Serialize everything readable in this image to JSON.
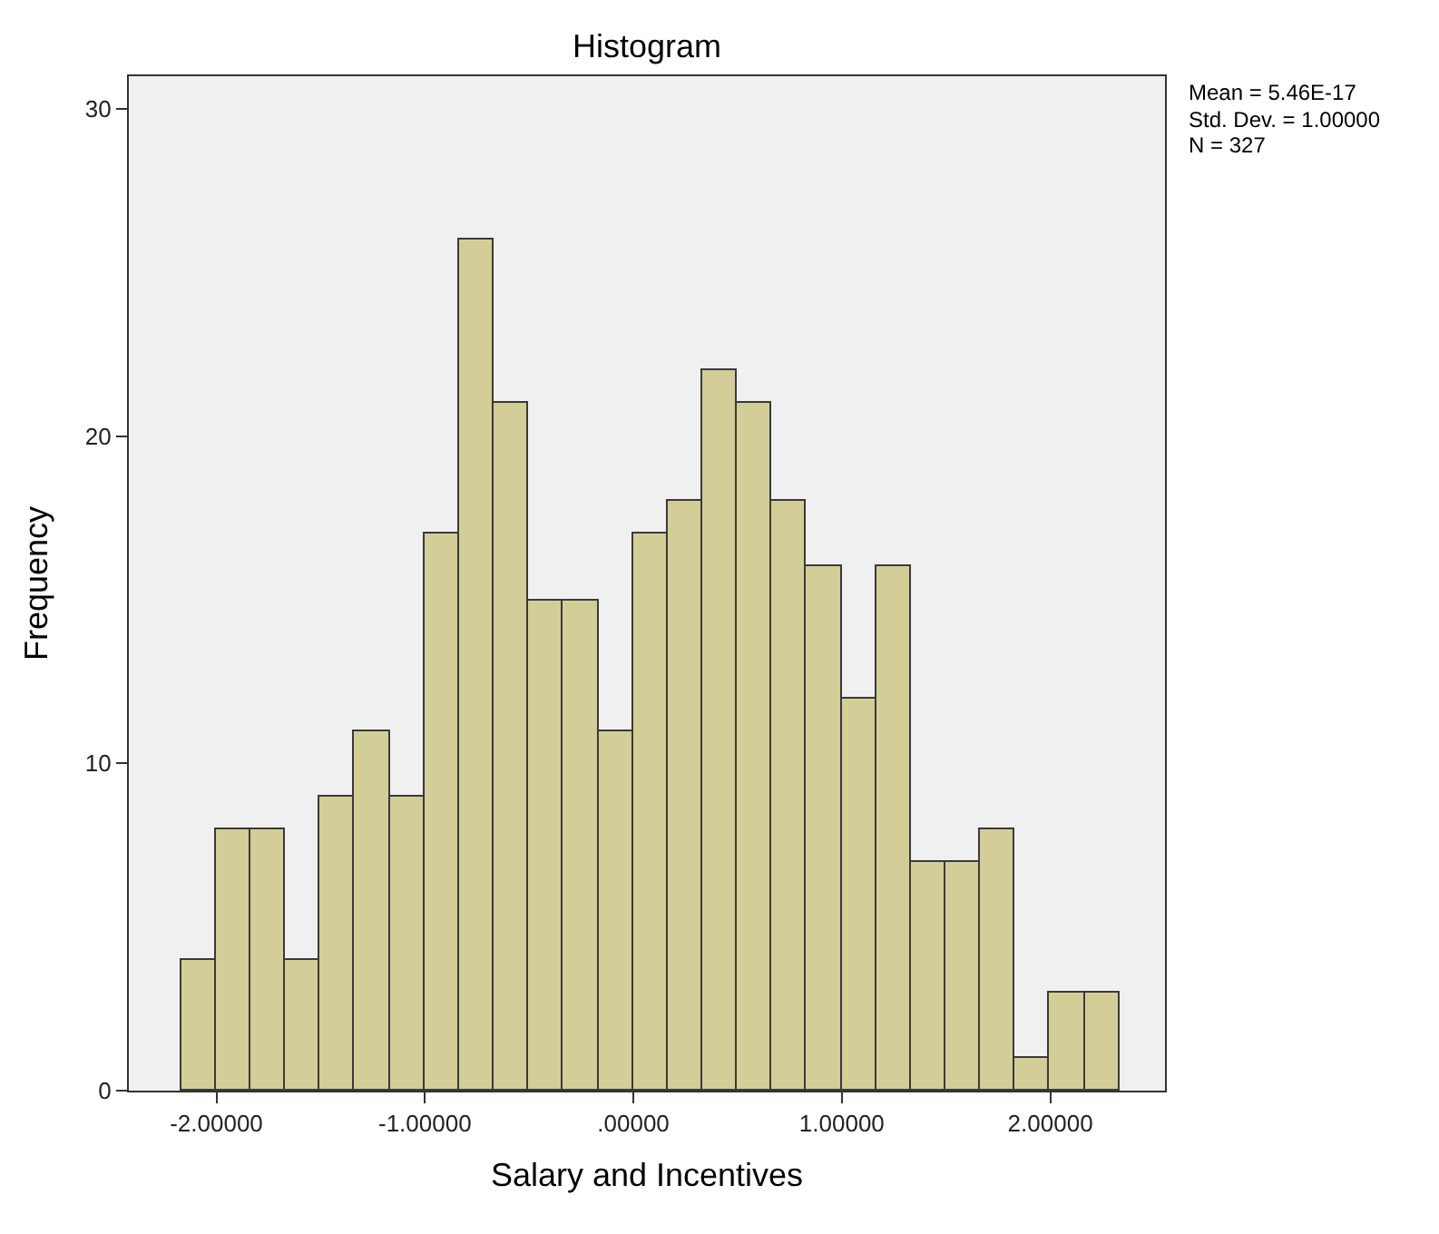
{
  "chart_data": {
    "type": "histogram",
    "title": "Histogram",
    "xlabel": "Salary and Incentives",
    "ylabel": "Frequency",
    "bins": [
      -2.17,
      -2.003,
      -1.837,
      -1.67,
      -1.503,
      -1.337,
      -1.17,
      -1.003,
      -0.837,
      -0.67,
      -0.503,
      -0.337,
      -0.17,
      -0.003,
      0.163,
      0.33,
      0.497,
      0.663,
      0.83,
      0.997,
      1.163,
      1.33,
      1.497,
      1.663,
      1.83,
      1.997,
      2.163,
      2.33
    ],
    "values": [
      4,
      8,
      8,
      4,
      9,
      11,
      9,
      17,
      26,
      21,
      15,
      15,
      11,
      17,
      18,
      22,
      21,
      18,
      16,
      12,
      16,
      7,
      7,
      8,
      1,
      3,
      3
    ],
    "color": "#d3ce97",
    "xlim": [
      -2.42,
      2.55
    ],
    "ylim": [
      0,
      31
    ],
    "xticks": [
      {
        "value": -2,
        "label": "-2.00000"
      },
      {
        "value": -1,
        "label": "-1.00000"
      },
      {
        "value": 0,
        "label": ".00000"
      },
      {
        "value": 1,
        "label": "1.00000"
      },
      {
        "value": 2,
        "label": "2.00000"
      }
    ],
    "yticks": [
      0,
      10,
      20,
      30
    ],
    "grid": false,
    "annotations": [
      "Mean = 5.46E-17",
      "Std. Dev. = 1.00000",
      "N = 327"
    ]
  }
}
